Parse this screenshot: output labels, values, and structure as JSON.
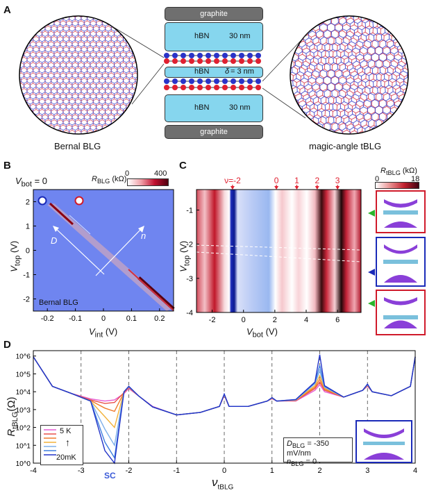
{
  "panel_a": {
    "label": "A",
    "left_caption": "Bernal BLG",
    "right_caption": "magic-angle tBLG",
    "stack": {
      "top_graphite": "graphite",
      "bottom_graphite": "graphite",
      "top_hbn": "hBN",
      "top_hbn_thickness": "30 nm",
      "mid_hbn": "hBN",
      "mid_hbn_thickness": "= 3 nm",
      "mid_hbn_symbol": "δ",
      "bottom_hbn": "hBN",
      "bottom_hbn_thickness": "30 nm"
    }
  },
  "panel_b": {
    "label": "B",
    "vbot_label": "V",
    "vbot_sub": "bot",
    "vbot_value": " = 0",
    "cbar_label": "R",
    "cbar_sub": "BLG",
    "cbar_unit": " (kΩ)",
    "cbar_min": "0",
    "cbar_max": "400",
    "x_label": "V",
    "x_sub": "int",
    "x_unit": " (V)",
    "y_label": "V",
    "y_sub": "top",
    "y_unit": " (V)",
    "inset_text": "Bernal BLG",
    "arrow_D": "D",
    "arrow_n": "n"
  },
  "panel_c": {
    "label": "C",
    "cbar_label": "R",
    "cbar_sub": "tBLG",
    "cbar_unit": " (kΩ)",
    "cbar_min": "0",
    "cbar_max": "18",
    "x_label": "V",
    "x_sub": "bot",
    "x_unit": " (V)",
    "y_label": "V",
    "y_sub": "top",
    "y_unit": " (V)",
    "fill_labels": [
      "ν=-2",
      "0",
      "1",
      "2",
      "3"
    ]
  },
  "panel_d": {
    "label": "D",
    "y_label": "R",
    "y_sub": "tBLG",
    "y_unit": "(Ω)",
    "x_label": "ν",
    "x_sub": "tBLG",
    "sc_label": "SC",
    "legend_top": "5 K",
    "legend_bottom": "20mK",
    "d_label": "D",
    "d_sub": "BLG",
    "d_value": " = -350 mV/nm",
    "n_label": "n",
    "n_sub": "BLG",
    "n_value": " = 0"
  },
  "chart_data": [
    {
      "type": "heatmap",
      "title": "",
      "xlabel": "V_int (V)",
      "ylabel": "V_top (V)",
      "xlim": [
        -0.25,
        0.25
      ],
      "ylim": [
        -2.5,
        2.5
      ],
      "x_ticks": [
        -0.2,
        -0.1,
        0,
        0.1,
        0.2
      ],
      "y_ticks": [
        2,
        1,
        0,
        -1,
        -2
      ],
      "colorbar": {
        "label": "R_BLG (kΩ)",
        "range": [
          0,
          400
        ]
      }
    },
    {
      "type": "heatmap",
      "title": "",
      "xlabel": "V_bot (V)",
      "ylabel": "V_top (V)",
      "xlim": [
        -3,
        7.5
      ],
      "ylim": [
        -4,
        -0.4
      ],
      "x_ticks": [
        -2,
        0,
        2,
        4,
        6
      ],
      "y_ticks": [
        -1,
        -2,
        -3,
        -4
      ],
      "colorbar": {
        "label": "R_tBLG (kΩ)",
        "range": [
          0,
          18
        ]
      },
      "fill_markers": [
        {
          "label": "ν=-2",
          "x": -0.7
        },
        {
          "label": "0",
          "x": 2.1
        },
        {
          "label": "1",
          "x": 3.4
        },
        {
          "label": "2",
          "x": 4.7
        },
        {
          "label": "3",
          "x": 6.0
        }
      ]
    },
    {
      "type": "line",
      "title": "",
      "xlabel": "ν_tBLG",
      "ylabel": "R_tBLG (Ω)",
      "xlim": [
        -4,
        4
      ],
      "ylog": true,
      "ylim": [
        1,
        2000000
      ],
      "x_ticks": [
        -4,
        -3,
        -2,
        -1,
        0,
        1,
        2,
        3,
        4
      ],
      "y_ticks": [
        "10^0",
        "10^1",
        "10^2",
        "10^3",
        "10^4",
        "10^5",
        "10^6"
      ],
      "legend": [
        "5 K",
        "20mK"
      ],
      "series_colors": [
        "#e65ad2",
        "#e8504b",
        "#f07a2c",
        "#f2b23a",
        "#7fb0ea",
        "#3f7fe0",
        "#2233c8"
      ],
      "x": [
        -4,
        -3.6,
        -3.2,
        -2.8,
        -2.5,
        -2.3,
        -2.1,
        -2.0,
        -1.8,
        -1.5,
        -1,
        -0.5,
        -0.1,
        0,
        0.1,
        0.5,
        0.9,
        1.0,
        1.1,
        1.5,
        1.9,
        2.0,
        2.1,
        2.5,
        2.9,
        3.0,
        3.1,
        3.5,
        3.9,
        4
      ],
      "series": [
        {
          "values": [
            900000,
            20000,
            8000,
            4000,
            3000,
            3500,
            8000,
            15000,
            6000,
            1500,
            500,
            700,
            1500,
            6000,
            1500,
            1500,
            3000,
            4000,
            3000,
            3000,
            12000,
            25000,
            10000,
            5000,
            12000,
            20000,
            10000,
            6000,
            20000,
            900000
          ]
        },
        {
          "values": [
            900000,
            20000,
            8000,
            3500,
            2200,
            2500,
            9000,
            17000,
            6000,
            1400,
            500,
            700,
            1500,
            6500,
            1500,
            1500,
            3000,
            4200,
            3000,
            3200,
            15000,
            35000,
            12000,
            5000,
            12000,
            22000,
            10000,
            6000,
            20000,
            900000
          ]
        },
        {
          "values": [
            900000,
            20000,
            8000,
            3200,
            1200,
            800,
            9000,
            18000,
            6000,
            1400,
            500,
            700,
            1500,
            6500,
            1500,
            1500,
            3000,
            4300,
            3000,
            3300,
            18000,
            50000,
            14000,
            5000,
            12000,
            23000,
            10000,
            6000,
            20000,
            900000
          ]
        },
        {
          "values": [
            900000,
            20000,
            8000,
            3000,
            400,
            100,
            10000,
            19000,
            6000,
            1400,
            500,
            700,
            1500,
            6800,
            1500,
            1500,
            3000,
            4400,
            3000,
            3400,
            22000,
            80000,
            16000,
            5000,
            12000,
            24000,
            10000,
            6000,
            20000,
            900000
          ]
        },
        {
          "values": [
            900000,
            20000,
            8000,
            3000,
            80,
            10,
            10000,
            19000,
            6000,
            1400,
            500,
            700,
            1500,
            7000,
            1500,
            1500,
            3000,
            4500,
            3000,
            3500,
            28000,
            150000,
            18000,
            5000,
            12000,
            25000,
            10000,
            6000,
            20000,
            900000
          ]
        },
        {
          "values": [
            900000,
            20000,
            8000,
            3000,
            15,
            2,
            10000,
            20000,
            6000,
            1400,
            500,
            700,
            1500,
            7200,
            1500,
            1500,
            3000,
            4600,
            3000,
            3600,
            32000,
            300000,
            20000,
            5000,
            12000,
            26000,
            10000,
            6000,
            20000,
            900000
          ]
        },
        {
          "values": [
            900000,
            20000,
            8000,
            3000,
            5,
            1,
            10000,
            20000,
            6000,
            1400,
            500,
            700,
            1500,
            7500,
            1500,
            1500,
            3000,
            4700,
            3000,
            3700,
            35000,
            1200000,
            22000,
            5000,
            12000,
            27000,
            10000,
            6000,
            20000,
            900000
          ]
        }
      ]
    }
  ]
}
